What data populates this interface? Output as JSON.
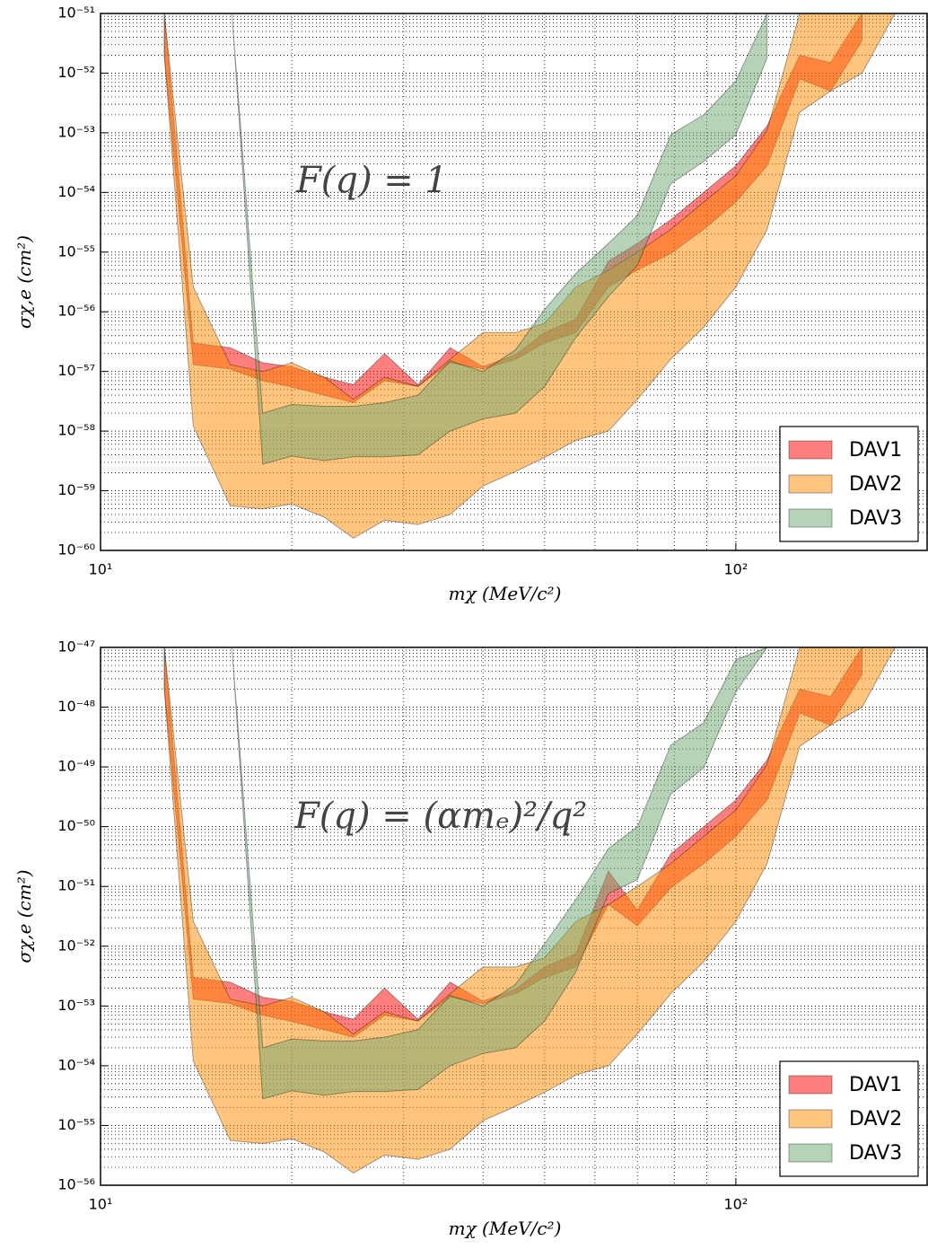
{
  "chart_data": [
    {
      "type": "band",
      "annotation": "F(q) = 1",
      "x_label": "mχ (MeV/c²)",
      "y_label": "σχ,e (cm²)",
      "log_x": true,
      "log_y": true,
      "grid": true,
      "legend": "lower right",
      "xlim": [
        10,
        200
      ],
      "ylim": [
        1e-60,
        1e-51
      ],
      "xticks": [
        {
          "value": 10,
          "label": "10¹"
        },
        {
          "value": 100,
          "label": "10²"
        }
      ],
      "xminorticks": [
        20,
        30,
        40,
        50,
        60,
        70,
        80,
        90
      ],
      "yticks": [
        {
          "value": 1e-60,
          "label": "10⁻⁶⁰"
        },
        {
          "value": 1e-59,
          "label": "10⁻⁵⁹"
        },
        {
          "value": 1e-58,
          "label": "10⁻⁵⁸"
        },
        {
          "value": 1e-57,
          "label": "10⁻⁵⁷"
        },
        {
          "value": 1e-56,
          "label": "10⁻⁵⁶"
        },
        {
          "value": 1e-55,
          "label": "10⁻⁵⁵"
        },
        {
          "value": 1e-54,
          "label": "10⁻⁵⁴"
        },
        {
          "value": 1e-53,
          "label": "10⁻⁵³"
        },
        {
          "value": 1e-52,
          "label": "10⁻⁵²"
        },
        {
          "value": 1e-51,
          "label": "10⁻⁵¹"
        }
      ],
      "yminorticks": [
        2e-60,
        3e-60,
        4e-60,
        5e-60,
        6e-60,
        7e-60,
        8e-60,
        9e-60,
        2e-59,
        3e-59,
        4e-59,
        5e-59,
        6e-59,
        7e-59,
        8e-59,
        9e-59,
        2e-58,
        3e-58,
        4e-58,
        5e-58,
        6e-58,
        7e-58,
        8e-58,
        9e-58,
        2e-57,
        3e-57,
        4e-57,
        5e-57,
        6e-57,
        7e-57,
        8e-57,
        9e-57,
        2e-56,
        3e-56,
        4e-56,
        5e-56,
        6e-56,
        7e-56,
        8e-56,
        9e-56,
        2e-55,
        3e-55,
        4e-55,
        5e-55,
        6e-55,
        7e-55,
        8e-55,
        9e-55,
        2e-54,
        3e-54,
        4e-54,
        5e-54,
        6e-54,
        7e-54,
        8e-54,
        9e-54,
        2e-53,
        3e-53,
        4e-53,
        5e-53,
        6e-53,
        7e-53,
        8e-53,
        9e-53,
        2e-52,
        3e-52,
        4e-52,
        5e-52,
        6e-52,
        7e-52,
        8e-52,
        9e-52
      ],
      "series": [
        {
          "name": "DAV1",
          "color": "#ff0000",
          "x": [
            12.6,
            14,
            16,
            18,
            20,
            22.5,
            25,
            28,
            31.6,
            35.5,
            40,
            45,
            50,
            56,
            63,
            70,
            79,
            89,
            100,
            112,
            126,
            141,
            158
          ],
          "upper": [
            1e-51,
            3e-57,
            2.5e-57,
            1.4e-57,
            1.2e-57,
            8e-58,
            6e-58,
            2e-57,
            6e-58,
            2.5e-57,
            1.2e-57,
            1.9e-57,
            4.5e-57,
            7.5e-57,
            7e-56,
            1.4e-55,
            3.5e-55,
            1e-54,
            2.8e-54,
            1.3e-53,
            2e-52,
            1.5e-52,
            1e-51
          ],
          "lower": [
            2e-52,
            1.3e-57,
            1.1e-57,
            7e-58,
            5.5e-58,
            4e-58,
            3e-58,
            7e-58,
            5.6e-58,
            1.4e-57,
            1.1e-57,
            1.6e-57,
            3e-57,
            4.5e-57,
            2.6e-56,
            5e-56,
            9.5e-56,
            2.4e-55,
            6.9e-55,
            2.8e-54,
            8e-53,
            5e-53,
            3.5e-52
          ]
        },
        {
          "name": "DAV2",
          "color": "#ff8c00",
          "x": [
            12.6,
            14,
            16,
            18,
            20,
            22.5,
            25,
            28,
            31.6,
            35.5,
            40,
            45,
            50,
            56,
            63,
            70,
            79,
            89,
            100,
            112,
            126,
            141,
            158,
            178
          ],
          "upper": [
            1e-51,
            2.6e-56,
            1.3e-57,
            1e-57,
            1.4e-57,
            8e-58,
            3.4e-58,
            8e-58,
            5.6e-58,
            1.6e-57,
            4.5e-57,
            4.5e-57,
            6.4e-57,
            2.6e-56,
            5e-56,
            1e-55,
            2.4e-55,
            6.9e-55,
            1.9e-54,
            1.1e-53,
            1e-51,
            1e-51,
            1e-51,
            1e-51
          ],
          "lower": [
            2e-52,
            1.2e-58,
            5.6e-60,
            5e-60,
            6e-60,
            3.6e-60,
            1.6e-60,
            3.2e-60,
            2.7e-60,
            4e-60,
            1.2e-59,
            2.1e-59,
            3.6e-59,
            7e-59,
            1e-58,
            3.4e-58,
            1.6e-57,
            5.5e-57,
            2.6e-56,
            2.4e-55,
            2.2e-53,
            5e-53,
            1e-52,
            1e-51
          ]
        },
        {
          "name": "DAV3",
          "color": "#70a870",
          "x": [
            16.1,
            18,
            20,
            22.5,
            25,
            28,
            31.6,
            35.5,
            40,
            45,
            50,
            56,
            63,
            70,
            79,
            89,
            100,
            112
          ],
          "upper": [
            1e-51,
            2e-58,
            2.8e-58,
            2.6e-58,
            2.6e-58,
            3e-58,
            4e-58,
            1.5e-57,
            1e-57,
            2.3e-57,
            1.1e-56,
            4.4e-56,
            1.4e-55,
            4.1e-55,
            9.3e-54,
            2e-53,
            7.4e-53,
            1e-51
          ],
          "lower": [
            1e-51,
            2.8e-59,
            3.8e-59,
            3.2e-59,
            3.7e-59,
            3.7e-59,
            4e-59,
            1e-58,
            1.6e-58,
            2e-58,
            5.6e-58,
            3.7e-57,
            1.8e-56,
            6e-56,
            1.4e-54,
            3.3e-54,
            9.3e-54,
            1.8e-52
          ]
        }
      ]
    },
    {
      "type": "band",
      "annotation": "F(q) = (αmₑ)²/q²",
      "x_label": "mχ (MeV/c²)",
      "y_label": "σχ,e (cm²)",
      "log_x": true,
      "log_y": true,
      "grid": true,
      "legend": "lower right",
      "xlim": [
        10,
        200
      ],
      "ylim": [
        1e-56,
        1e-47
      ],
      "xticks": [
        {
          "value": 10,
          "label": "10¹"
        },
        {
          "value": 100,
          "label": "10²"
        }
      ],
      "xminorticks": [
        20,
        30,
        40,
        50,
        60,
        70,
        80,
        90
      ],
      "yticks": [
        {
          "value": 1e-56,
          "label": "10⁻⁵⁶"
        },
        {
          "value": 1e-55,
          "label": "10⁻⁵⁵"
        },
        {
          "value": 1e-54,
          "label": "10⁻⁵⁴"
        },
        {
          "value": 1e-53,
          "label": "10⁻⁵³"
        },
        {
          "value": 1e-52,
          "label": "10⁻⁵²"
        },
        {
          "value": 1e-51,
          "label": "10⁻⁵¹"
        },
        {
          "value": 1e-50,
          "label": "10⁻⁵⁰"
        },
        {
          "value": 1e-49,
          "label": "10⁻⁴⁹"
        },
        {
          "value": 1e-48,
          "label": "10⁻⁴⁸"
        },
        {
          "value": 1e-47,
          "label": "10⁻⁴⁷"
        }
      ],
      "yminorticks": [
        2e-56,
        3e-56,
        4e-56,
        5e-56,
        6e-56,
        7e-56,
        8e-56,
        9e-56,
        2e-55,
        3e-55,
        4e-55,
        5e-55,
        6e-55,
        7e-55,
        8e-55,
        9e-55,
        2e-54,
        3e-54,
        4e-54,
        5e-54,
        6e-54,
        7e-54,
        8e-54,
        9e-54,
        2e-53,
        3e-53,
        4e-53,
        5e-53,
        6e-53,
        7e-53,
        8e-53,
        9e-53,
        2e-52,
        3e-52,
        4e-52,
        5e-52,
        6e-52,
        7e-52,
        8e-52,
        9e-52,
        2e-51,
        3e-51,
        4e-51,
        5e-51,
        6e-51,
        7e-51,
        8e-51,
        9e-51,
        2e-50,
        3e-50,
        4e-50,
        5e-50,
        6e-50,
        7e-50,
        8e-50,
        9e-50,
        2e-49,
        3e-49,
        4e-49,
        5e-49,
        6e-49,
        7e-49,
        8e-49,
        9e-49,
        2e-48,
        3e-48,
        4e-48,
        5e-48,
        6e-48,
        7e-48,
        8e-48,
        9e-48
      ],
      "series": [
        {
          "name": "DAV1",
          "color": "#ff0000",
          "x": [
            12.6,
            14,
            16,
            18,
            20,
            22.5,
            25,
            28,
            31.6,
            35.5,
            40,
            45,
            50,
            56,
            63,
            70,
            79,
            89,
            100,
            112,
            126,
            141,
            158
          ],
          "upper": [
            1e-47,
            3e-53,
            2.5e-53,
            1.4e-53,
            1.2e-53,
            8e-54,
            6e-54,
            2e-53,
            6e-54,
            2.5e-53,
            1.2e-53,
            1.9e-53,
            4.5e-53,
            7.5e-53,
            1.8e-51,
            4e-52,
            3.5e-51,
            1e-50,
            2.8e-50,
            1.3e-49,
            2e-48,
            1.5e-48,
            1e-47
          ],
          "lower": [
            2e-48,
            1.3e-53,
            1.1e-53,
            7e-54,
            5.5e-54,
            4e-54,
            3e-54,
            7e-54,
            5.6e-54,
            1.4e-53,
            1.1e-53,
            1.6e-53,
            3e-53,
            4.5e-53,
            5e-52,
            2.2e-52,
            9.5e-52,
            2.4e-51,
            6.9e-51,
            2.8e-50,
            8e-49,
            5e-49,
            3.5e-48
          ]
        },
        {
          "name": "DAV2",
          "color": "#ff8c00",
          "x": [
            12.6,
            14,
            16,
            18,
            20,
            22.5,
            25,
            28,
            31.6,
            35.5,
            40,
            45,
            50,
            56,
            63,
            70,
            79,
            89,
            100,
            112,
            126,
            141,
            158,
            178
          ],
          "upper": [
            1e-47,
            2.6e-52,
            1.3e-53,
            1e-53,
            1.4e-53,
            8e-54,
            3.4e-54,
            8e-54,
            5.6e-54,
            1.6e-53,
            4.5e-53,
            4.5e-53,
            6.4e-53,
            2.6e-52,
            5e-52,
            1e-51,
            2.4e-51,
            6.9e-51,
            1.9e-50,
            1.1e-49,
            1e-47,
            1e-47,
            1e-47,
            1e-47
          ],
          "lower": [
            2e-48,
            1.2e-54,
            5.6e-56,
            5e-56,
            6e-56,
            3.6e-56,
            1.6e-56,
            3.2e-56,
            2.7e-56,
            4e-56,
            1.2e-55,
            2.1e-55,
            3.6e-55,
            7e-55,
            1e-54,
            3.4e-54,
            1.6e-53,
            5.5e-53,
            2.6e-52,
            2.4e-51,
            2.2e-49,
            5e-49,
            1e-48,
            1e-47
          ]
        },
        {
          "name": "DAV3",
          "color": "#70a870",
          "x": [
            16.1,
            18,
            20,
            22.5,
            25,
            28,
            31.6,
            35.5,
            40,
            45,
            50,
            56,
            63,
            70,
            79,
            89,
            100,
            112
          ],
          "upper": [
            1e-47,
            2e-54,
            2.8e-54,
            2.6e-54,
            2.6e-54,
            3e-54,
            4e-54,
            1.5e-53,
            1e-53,
            2.3e-53,
            1.1e-52,
            6e-52,
            4.3e-51,
            1e-50,
            2.3e-49,
            5.5e-49,
            6.2e-48,
            1e-47
          ],
          "lower": [
            1e-47,
            2.8e-55,
            3.8e-55,
            3.2e-55,
            3.7e-55,
            3.7e-55,
            4e-55,
            1e-54,
            1.6e-54,
            2e-54,
            5.6e-54,
            3.7e-53,
            7.6e-52,
            1.3e-51,
            3.5e-50,
            9.7e-50,
            1.8e-48,
            1e-47
          ]
        }
      ]
    }
  ]
}
